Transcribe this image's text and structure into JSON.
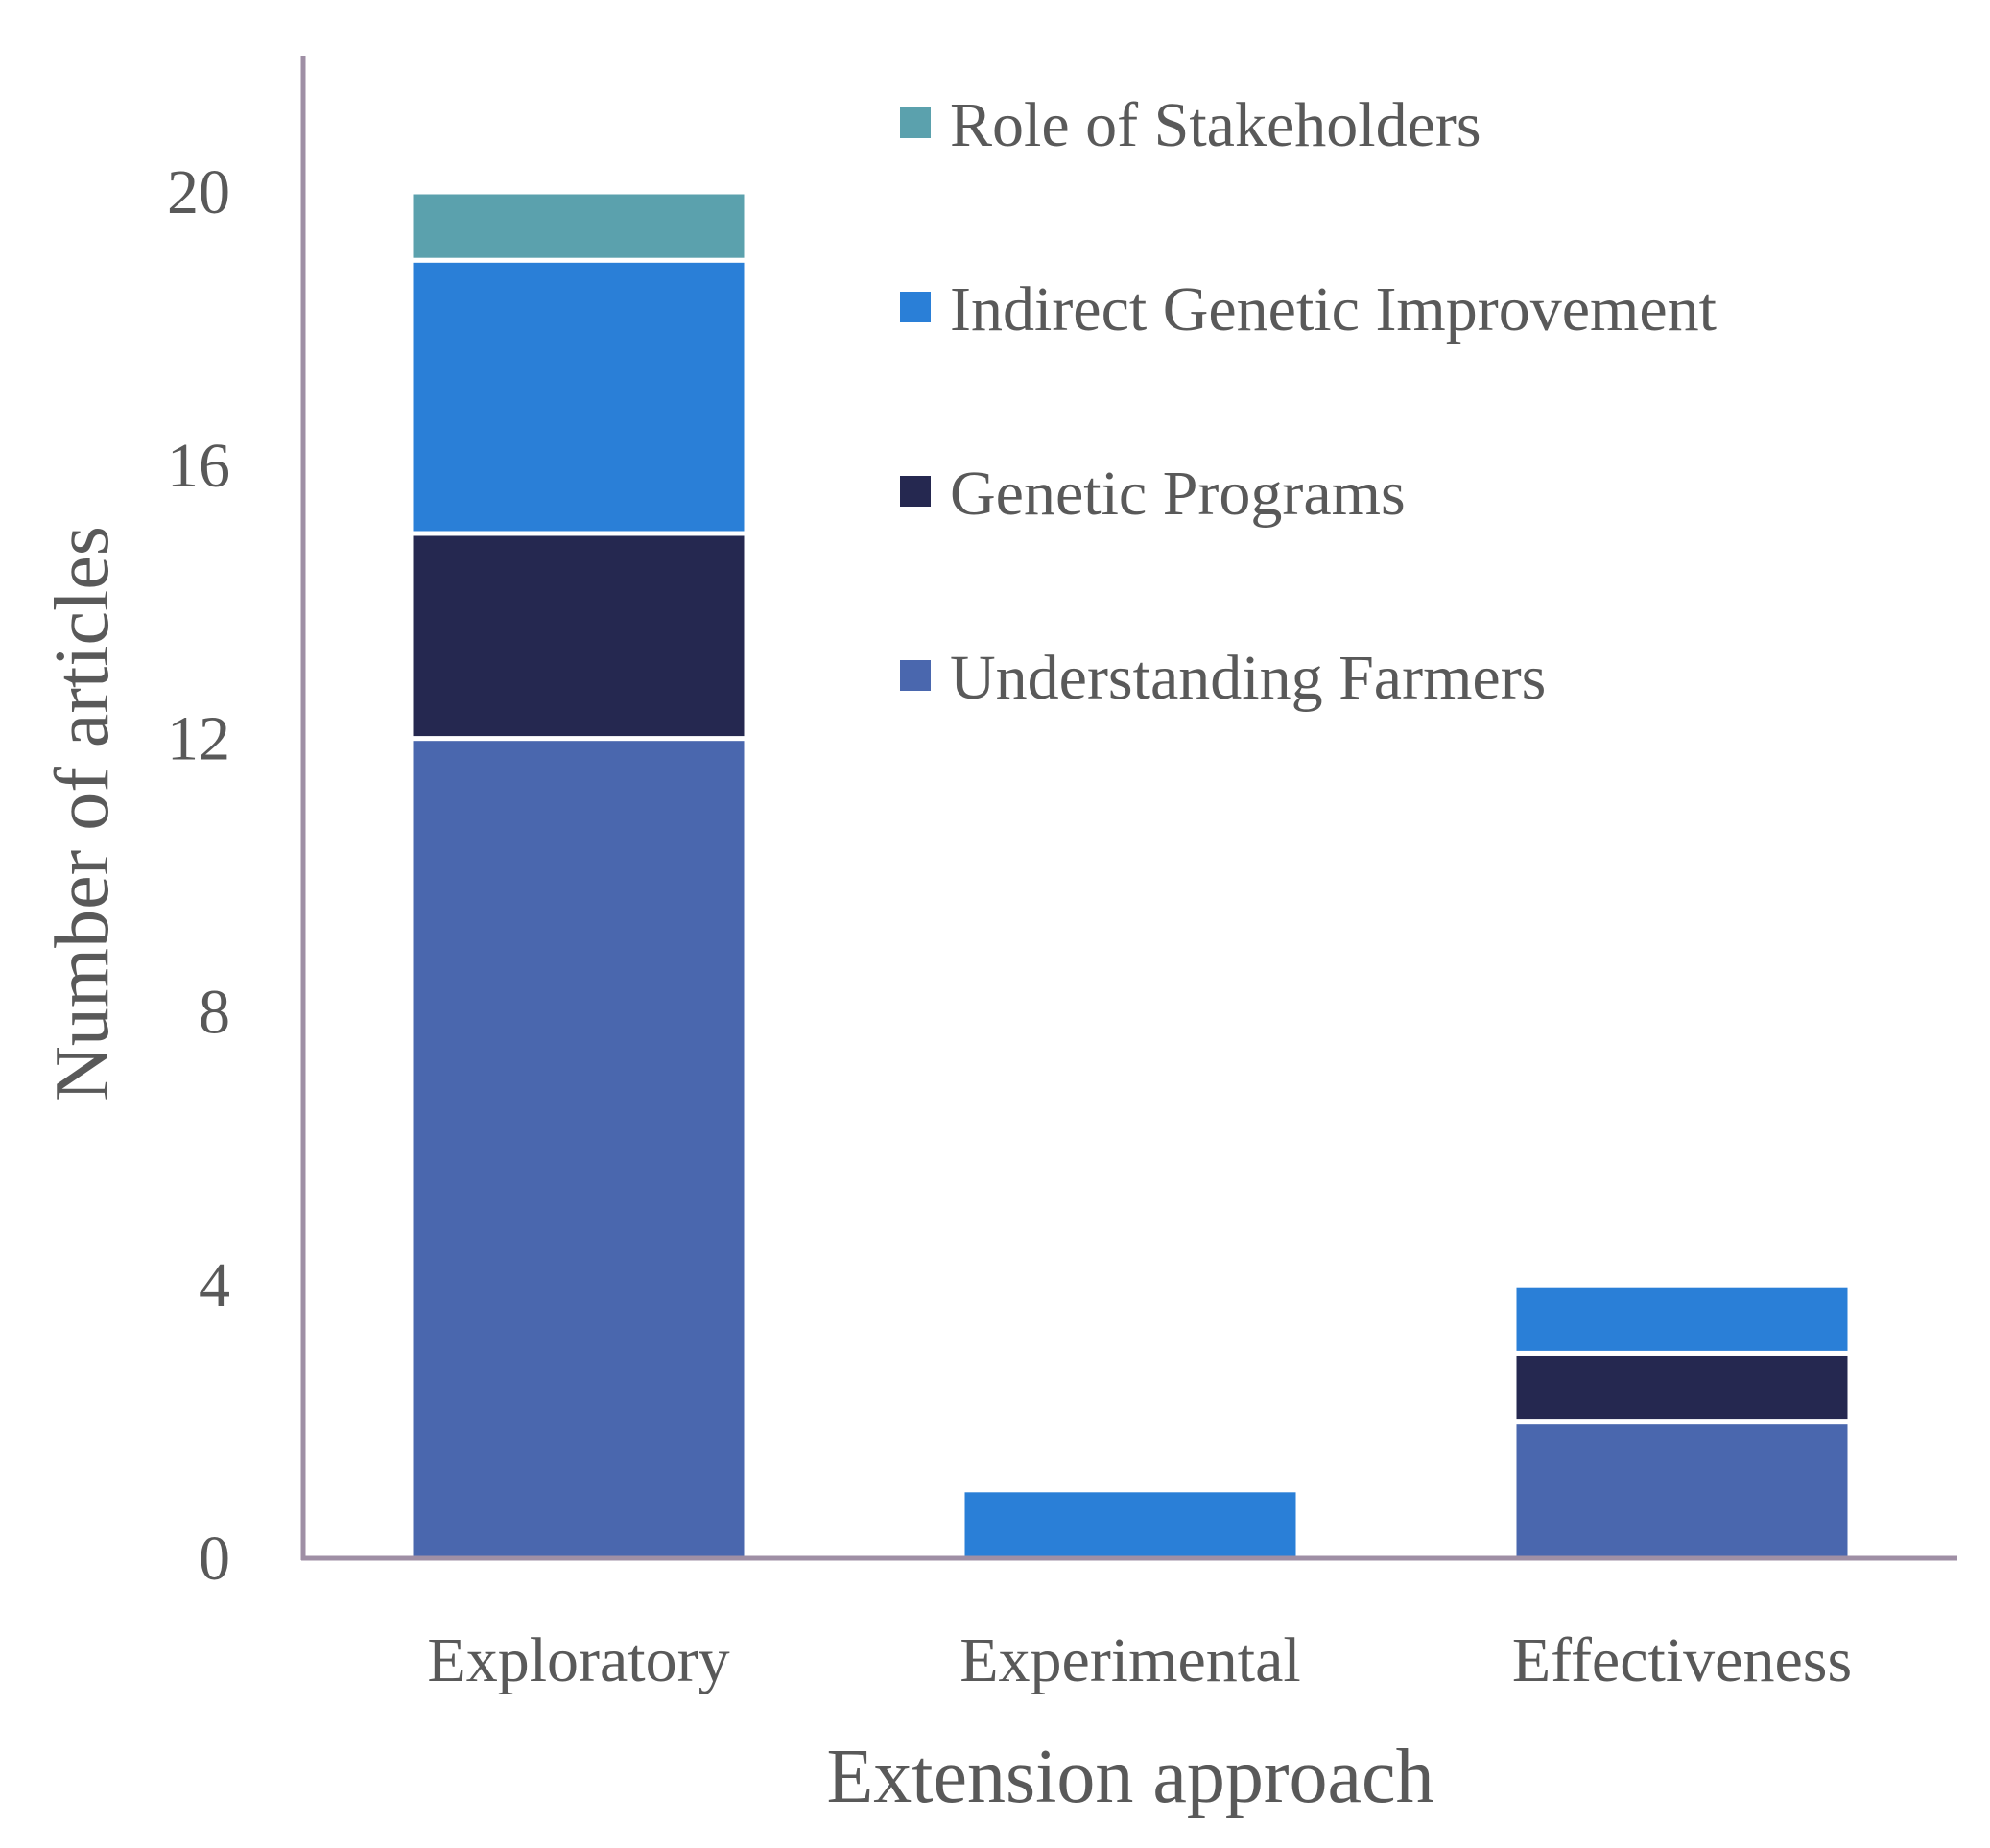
{
  "chart_data": {
    "type": "bar",
    "stacked": true,
    "title": "",
    "xlabel": "Extension approach",
    "ylabel": "Number of articles",
    "ylim": [
      0,
      22
    ],
    "yticks": [
      0,
      4,
      8,
      12,
      16,
      20
    ],
    "grid": false,
    "legend_position": "top-right",
    "categories": [
      "Exploratory",
      "Experimental",
      "Effectiveness"
    ],
    "series": [
      {
        "name": "Understanding Farmers",
        "color": "#4a67ae",
        "values": [
          12,
          0,
          2
        ]
      },
      {
        "name": "Genetic Programs",
        "color": "#252850",
        "values": [
          3,
          0,
          1
        ]
      },
      {
        "name": "Indirect Genetic Improvement",
        "color": "#2a7fd7",
        "values": [
          4,
          1,
          1
        ]
      },
      {
        "name": "Role of Stakeholders",
        "color": "#5ba1ad",
        "values": [
          1,
          0,
          0
        ]
      }
    ],
    "legend_order": [
      "Role of Stakeholders",
      "Indirect Genetic Improvement",
      "Genetic Programs",
      "Understanding Farmers"
    ],
    "axis_color": "#9f8fa5"
  }
}
